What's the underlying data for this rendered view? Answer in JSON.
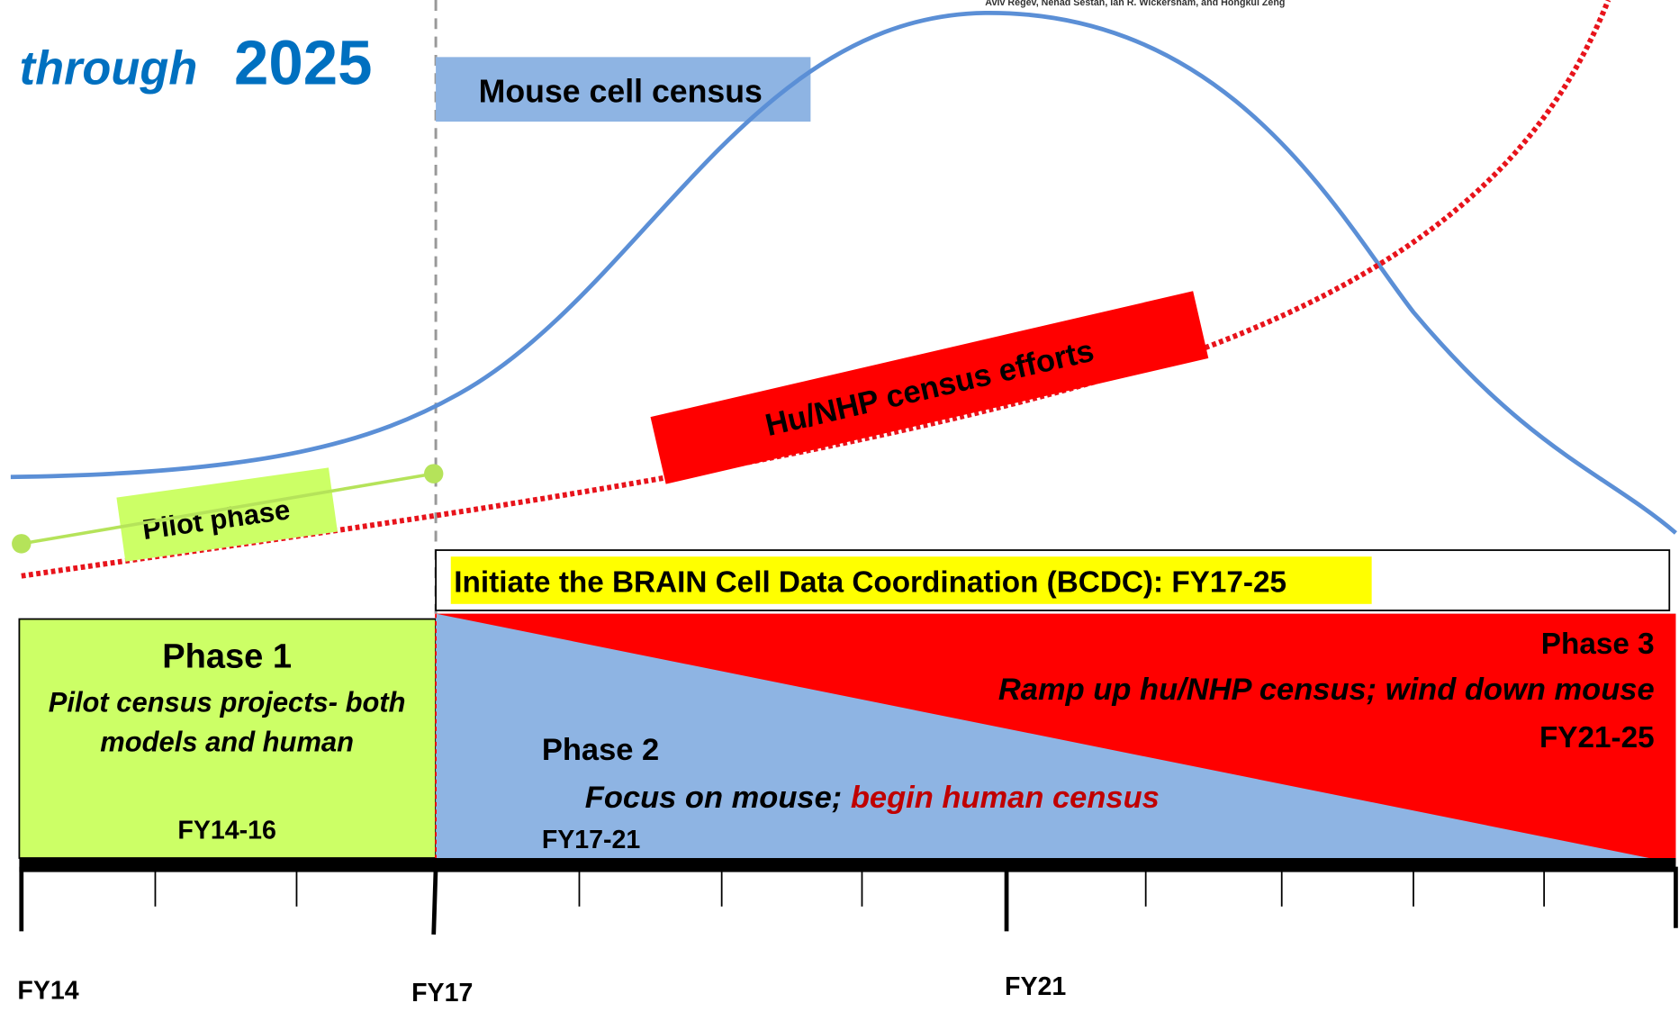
{
  "title": {
    "prefix": "through",
    "year": "2025"
  },
  "authors": "Aviv Regev, Nenad Sestan, Ian R. Wickersham, and Hongkui Zeng",
  "curves": {
    "mouse": "Mouse cell census",
    "human": "Hu/NHP census efforts",
    "pilot": "Pilot phase"
  },
  "bcdc": "Initiate the BRAIN Cell Data Coordination (BCDC): FY17-25",
  "phases": [
    {
      "name": "Phase 1",
      "lines": [
        "Pilot census projects- both",
        "models and human"
      ],
      "years": "FY14-16"
    },
    {
      "name": "Phase 2",
      "lines": [
        "Focus on mouse; ",
        "begin human census"
      ],
      "years": "FY17-21"
    },
    {
      "name": "Phase 3",
      "lines": [
        "Ramp up hu/NHP census; wind down mouse"
      ],
      "years": "FY21-25"
    }
  ],
  "timeline": {
    "labels": [
      "FY14",
      "FY17",
      "FY21"
    ]
  }
}
